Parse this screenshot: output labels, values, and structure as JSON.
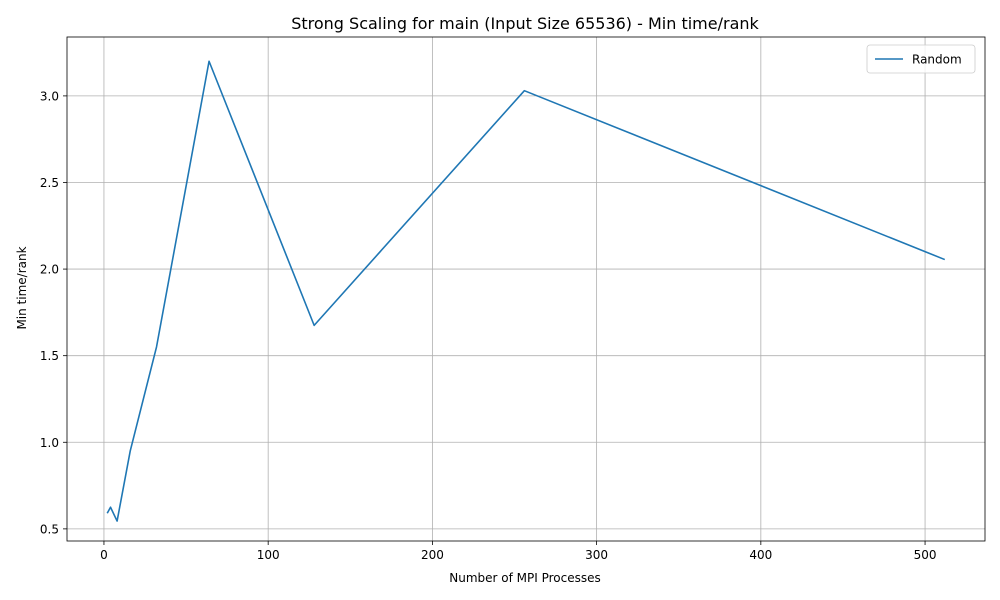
{
  "chart_data": {
    "type": "line",
    "title": "Strong Scaling for main (Input Size 65536) - Min time/rank",
    "xlabel": "Number of MPI Processes",
    "ylabel": "Min time/rank",
    "xlim": [
      -22.5,
      536.5
    ],
    "ylim": [
      0.43,
      3.34
    ],
    "xticks": [
      0,
      100,
      200,
      300,
      400,
      500
    ],
    "yticks": [
      0.5,
      1.0,
      1.5,
      2.0,
      2.5,
      3.0
    ],
    "xtick_labels": [
      "0",
      "100",
      "200",
      "300",
      "400",
      "500"
    ],
    "ytick_labels": [
      "0.5",
      "1.0",
      "1.5",
      "2.0",
      "2.5",
      "3.0"
    ],
    "grid": true,
    "legend_position": "top-right",
    "series": [
      {
        "name": "Random",
        "color": "#1f77b4",
        "x": [
          2,
          4,
          8,
          16,
          32,
          64,
          128,
          256,
          512
        ],
        "y": [
          0.59,
          0.625,
          0.545,
          0.95,
          1.55,
          3.2,
          1.675,
          3.03,
          2.055
        ]
      }
    ]
  }
}
